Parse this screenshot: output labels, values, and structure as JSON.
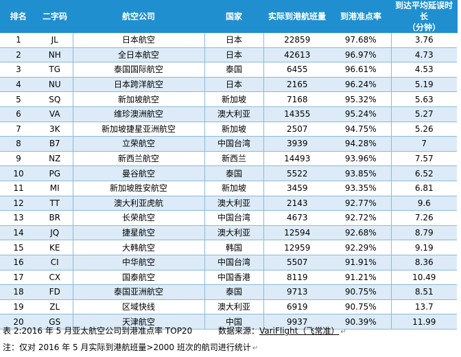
{
  "table": {
    "headers": {
      "rank": "排名",
      "code": "二字码",
      "airline": "航空公司",
      "country": "国家",
      "flights": "实际到港航班量",
      "on_time_rate": "到港准点率",
      "avg_delay_line1": "到达平均延误时长",
      "avg_delay_line2": "（分钟）"
    },
    "rows": [
      {
        "rank": "1",
        "code": "JL",
        "airline": "日本航空",
        "country": "日本",
        "flights": "22859",
        "rate": "97.68%",
        "delay": "3.76"
      },
      {
        "rank": "2",
        "code": "NH",
        "airline": "全日本航空",
        "country": "日本",
        "flights": "42613",
        "rate": "96.97%",
        "delay": "4.73"
      },
      {
        "rank": "3",
        "code": "TG",
        "airline": "泰国国际航空",
        "country": "泰国",
        "flights": "6455",
        "rate": "96.61%",
        "delay": "4.53"
      },
      {
        "rank": "4",
        "code": "NU",
        "airline": "日本跨洋航空",
        "country": "日本",
        "flights": "2165",
        "rate": "96.24%",
        "delay": "5.19"
      },
      {
        "rank": "5",
        "code": "SQ",
        "airline": "新加坡航空",
        "country": "新加坡",
        "flights": "7168",
        "rate": "95.32%",
        "delay": "5.63"
      },
      {
        "rank": "6",
        "code": "VA",
        "airline": "维珍澳洲航空",
        "country": "澳大利亚",
        "flights": "14355",
        "rate": "95.24%",
        "delay": "5.27"
      },
      {
        "rank": "7",
        "code": "3K",
        "airline": "新加坡捷星亚洲航空",
        "country": "新加坡",
        "flights": "2507",
        "rate": "94.75%",
        "delay": "5.26"
      },
      {
        "rank": "8",
        "code": "B7",
        "airline": "立荣航空",
        "country": "中国台湾",
        "flights": "3939",
        "rate": "94.28%",
        "delay": "7"
      },
      {
        "rank": "9",
        "code": "NZ",
        "airline": "新西兰航空",
        "country": "新西兰",
        "flights": "14493",
        "rate": "93.96%",
        "delay": "7.57"
      },
      {
        "rank": "10",
        "code": "PG",
        "airline": "曼谷航空",
        "country": "泰国",
        "flights": "5522",
        "rate": "93.85%",
        "delay": "6.52"
      },
      {
        "rank": "11",
        "code": "MI",
        "airline": "新加坡胜安航空",
        "country": "新加坡",
        "flights": "3459",
        "rate": "93.35%",
        "delay": "6.81"
      },
      {
        "rank": "12",
        "code": "TT",
        "airline": "澳大利亚虎航",
        "country": "澳大利亚",
        "flights": "2143",
        "rate": "92.77%",
        "delay": "9.6"
      },
      {
        "rank": "13",
        "code": "BR",
        "airline": "长荣航空",
        "country": "中国台湾",
        "flights": "4673",
        "rate": "92.72%",
        "delay": "7.26"
      },
      {
        "rank": "14",
        "code": "JQ",
        "airline": "捷星航空",
        "country": "澳大利亚",
        "flights": "12594",
        "rate": "92.68%",
        "delay": "8.79"
      },
      {
        "rank": "15",
        "code": "KE",
        "airline": "大韩航空",
        "country": "韩国",
        "flights": "12959",
        "rate": "92.29%",
        "delay": "9.19"
      },
      {
        "rank": "16",
        "code": "CI",
        "airline": "中华航空",
        "country": "中国台湾",
        "flights": "5507",
        "rate": "91.91%",
        "delay": "8.36"
      },
      {
        "rank": "17",
        "code": "CX",
        "airline": "国泰航空",
        "country": "中国香港",
        "flights": "8119",
        "rate": "91.21%",
        "delay": "10.49"
      },
      {
        "rank": "18",
        "code": "FD",
        "airline": "泰国亚洲航空",
        "country": "泰国",
        "flights": "9713",
        "rate": "90.75%",
        "delay": "8.51"
      },
      {
        "rank": "19",
        "code": "ZL",
        "airline": "区域快线",
        "country": "澳大利亚",
        "flights": "6919",
        "rate": "90.75%",
        "delay": "13.7"
      },
      {
        "rank": "20",
        "code": "GS",
        "airline": "天津航空",
        "country": "中国",
        "flights": "9937",
        "rate": "90.39%",
        "delay": "11.99"
      }
    ]
  },
  "caption": {
    "title": "表 2:2016 年 5 月亚太航空公司到港准点率 TOP20",
    "source_label": "数据来源：",
    "source_name": "VariFlight（飞常准）",
    "note": "注：仅对 2016 年 5 月实际到港航班量>2000 班次的航司进行统计"
  },
  "colors": {
    "header_bg": "#1f8fd0",
    "stripe_bg": "#dcebf7",
    "grid_line": "#8bb9da"
  }
}
